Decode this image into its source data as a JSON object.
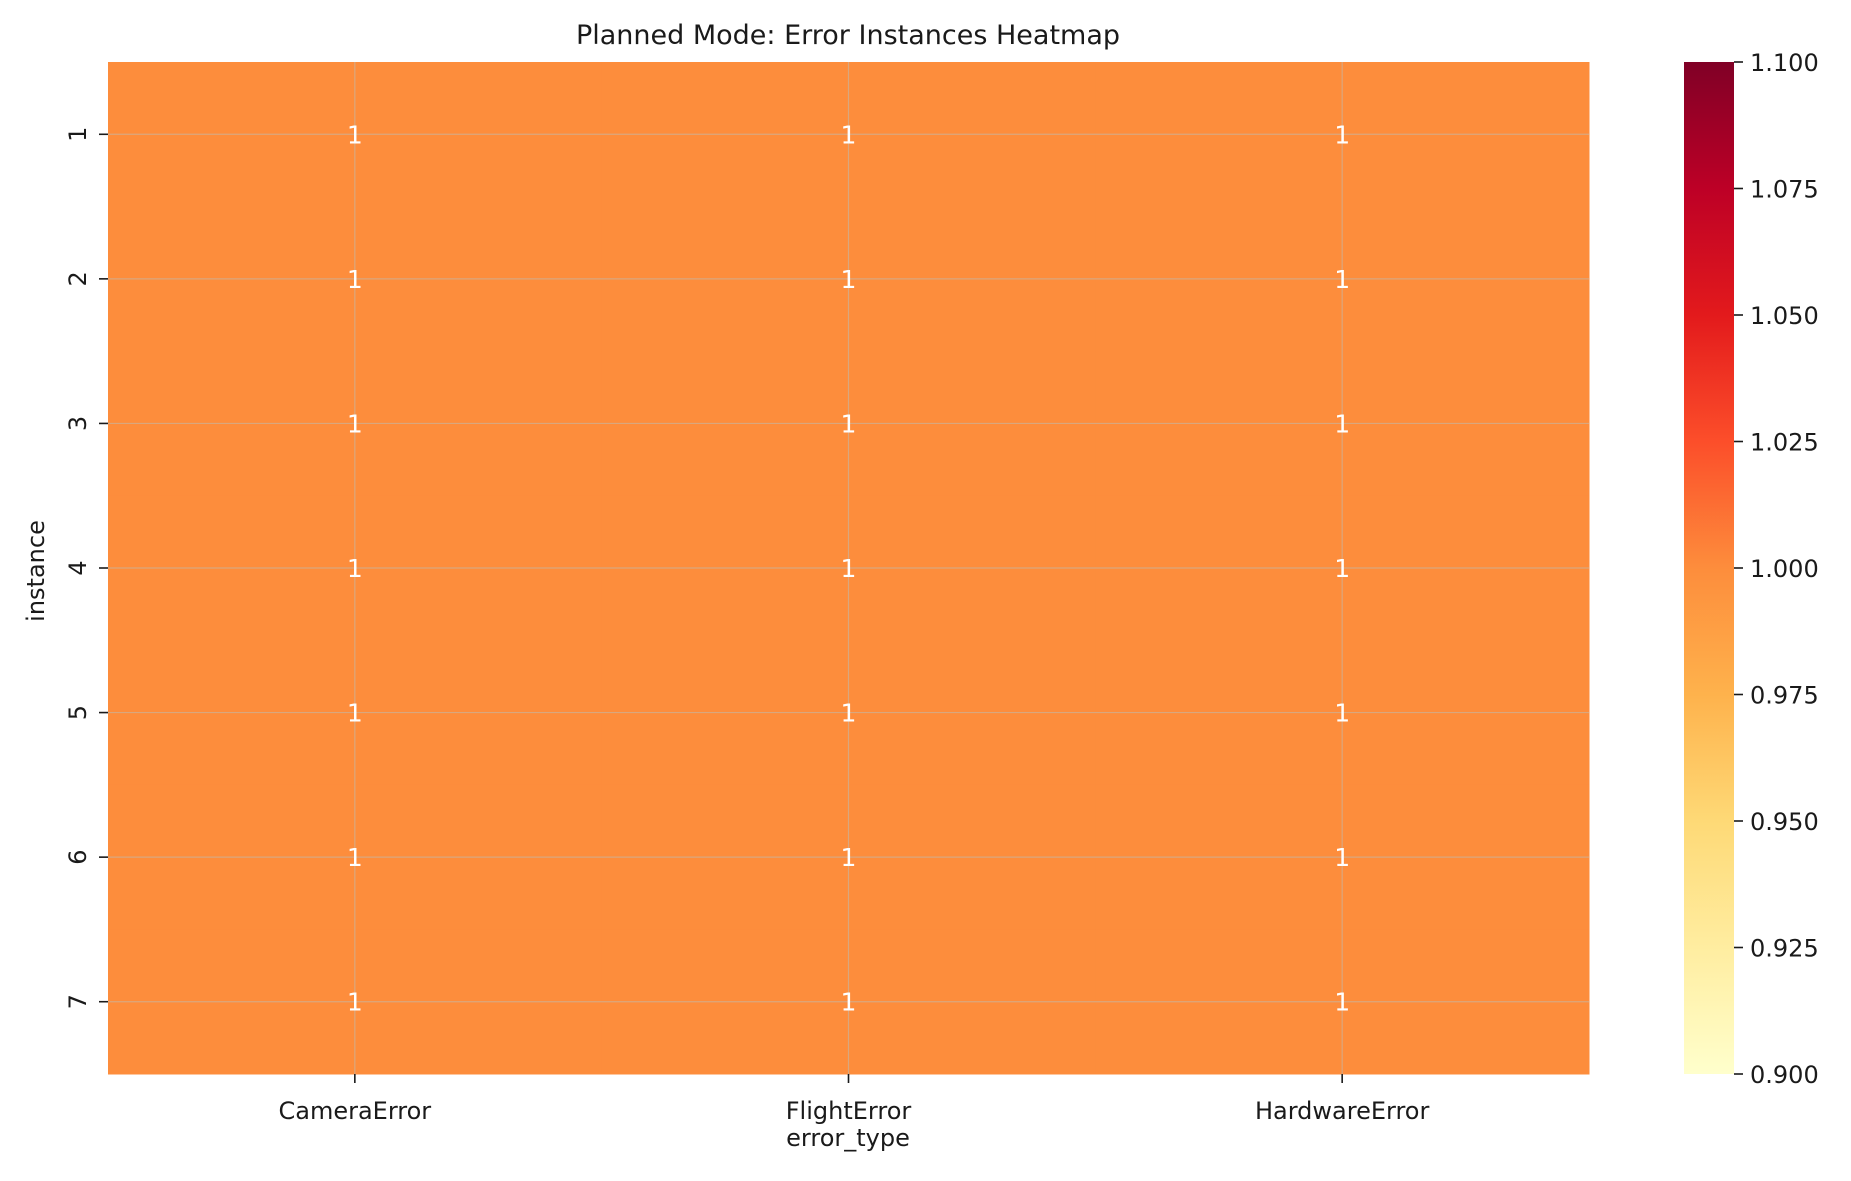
{
  "chart_data": {
    "type": "heatmap",
    "title": "Planned Mode: Error Instances Heatmap",
    "xlabel": "error_type",
    "ylabel": "instance",
    "x_categories": [
      "CameraError",
      "FlightError",
      "HardwareError"
    ],
    "y_categories": [
      "1",
      "2",
      "3",
      "4",
      "5",
      "6",
      "7"
    ],
    "values": [
      [
        1,
        1,
        1
      ],
      [
        1,
        1,
        1
      ],
      [
        1,
        1,
        1
      ],
      [
        1,
        1,
        1
      ],
      [
        1,
        1,
        1
      ],
      [
        1,
        1,
        1
      ],
      [
        1,
        1,
        1
      ]
    ],
    "annotations": true,
    "grid": true,
    "colorbar": {
      "colormap": "YlOrRd",
      "range": [
        0.9,
        1.1
      ],
      "ticks": [
        "0.900",
        "0.925",
        "0.950",
        "0.975",
        "1.000",
        "1.025",
        "1.050",
        "1.075",
        "1.100"
      ],
      "stops": [
        "#ffffcc",
        "#ffeda0",
        "#fed976",
        "#feb24c",
        "#fd8d3c",
        "#fc4e2a",
        "#e31a1c",
        "#bd0026",
        "#800026"
      ]
    },
    "cell_color": "#fd8d3c",
    "annotation_color": "#ffffff"
  }
}
